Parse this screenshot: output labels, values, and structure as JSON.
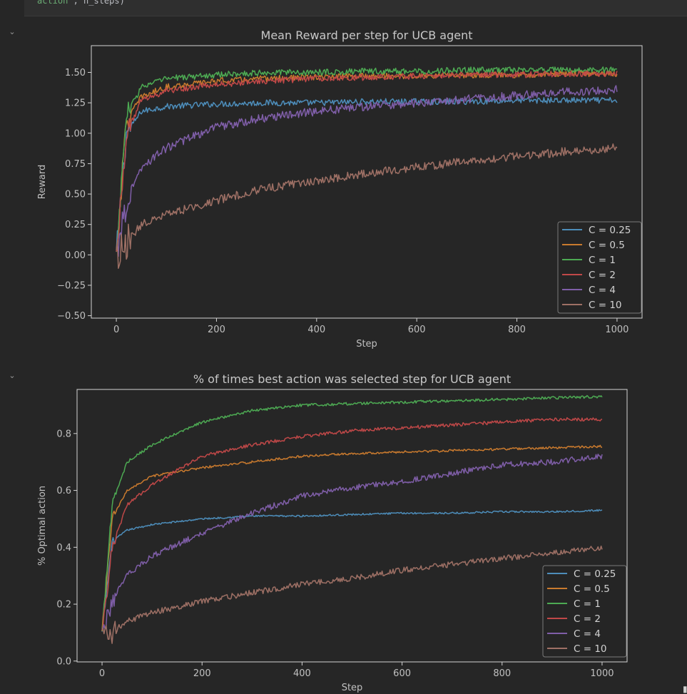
{
  "code_cell": {
    "string_fragment": "action\"",
    "rest_fragment": ", n_steps)"
  },
  "cell_toggle_icon": "chevron-down-icon",
  "cell_toggle_glyph": "⌄",
  "colors": {
    "background": "#262626",
    "axes_background": "#262626",
    "axes_frame": "#d4d4d4",
    "legend_background": "#262626",
    "legend_border": "#7a7a7a",
    "series": [
      "#4d8dba",
      "#c97a2e",
      "#4daa53",
      "#c04848",
      "#7f5ea8",
      "#9e7065"
    ]
  },
  "chart_data": [
    {
      "type": "line",
      "title": "Mean Reward per step for UCB agent",
      "xlabel": "Step",
      "ylabel": "Reward",
      "xlim": [
        -50,
        1050
      ],
      "ylim": [
        -0.52,
        1.72
      ],
      "xticks": [
        0,
        200,
        400,
        600,
        800,
        1000
      ],
      "yticks": [
        -0.5,
        -0.25,
        0.0,
        0.25,
        0.5,
        0.75,
        1.0,
        1.25,
        1.5
      ],
      "ytick_labels": [
        "−0.50",
        "−0.25",
        "0.00",
        "0.25",
        "0.50",
        "0.75",
        "1.00",
        "1.25",
        "1.50"
      ],
      "grid": false,
      "legend_position": "lower right",
      "x": [
        0,
        20,
        50,
        100,
        200,
        300,
        400,
        500,
        600,
        700,
        800,
        900,
        1000
      ],
      "series": [
        {
          "name": "C = 0.25",
          "values": [
            0.0,
            1.0,
            1.18,
            1.22,
            1.24,
            1.25,
            1.25,
            1.26,
            1.26,
            1.26,
            1.27,
            1.27,
            1.27
          ],
          "noise": 0.025
        },
        {
          "name": "C = 0.5",
          "values": [
            0.0,
            1.1,
            1.3,
            1.38,
            1.43,
            1.45,
            1.46,
            1.47,
            1.47,
            1.48,
            1.48,
            1.49,
            1.49
          ],
          "noise": 0.025
        },
        {
          "name": "C = 1",
          "values": [
            0.0,
            1.15,
            1.38,
            1.45,
            1.48,
            1.5,
            1.5,
            1.51,
            1.51,
            1.52,
            1.52,
            1.52,
            1.52
          ],
          "noise": 0.025
        },
        {
          "name": "C = 2",
          "values": [
            0.0,
            1.0,
            1.27,
            1.35,
            1.4,
            1.43,
            1.45,
            1.46,
            1.47,
            1.48,
            1.48,
            1.49,
            1.49
          ],
          "noise": 0.025
        },
        {
          "name": "C = 4",
          "values": [
            0.0,
            0.45,
            0.72,
            0.88,
            1.05,
            1.13,
            1.18,
            1.22,
            1.25,
            1.28,
            1.31,
            1.34,
            1.36
          ],
          "noise": 0.035
        },
        {
          "name": "C = 10",
          "values": [
            0.0,
            0.1,
            0.25,
            0.33,
            0.45,
            0.55,
            0.61,
            0.67,
            0.72,
            0.77,
            0.81,
            0.85,
            0.88
          ],
          "noise": 0.035
        }
      ]
    },
    {
      "type": "line",
      "title": "% of times best action was selected step for UCB agent",
      "xlabel": "Step",
      "ylabel": "% Optimal action",
      "xlim": [
        -50,
        1050
      ],
      "ylim": [
        -0.003,
        0.955
      ],
      "xticks": [
        0,
        200,
        400,
        600,
        800,
        1000
      ],
      "yticks": [
        0.0,
        0.2,
        0.4,
        0.6,
        0.8
      ],
      "ytick_labels": [
        "0.0",
        "0.2",
        "0.4",
        "0.6",
        "0.8"
      ],
      "grid": false,
      "legend_position": "lower right",
      "x": [
        0,
        20,
        50,
        100,
        200,
        300,
        400,
        500,
        600,
        700,
        800,
        900,
        1000
      ],
      "series": [
        {
          "name": "C = 0.25",
          "values": [
            0.1,
            0.42,
            0.46,
            0.48,
            0.5,
            0.51,
            0.51,
            0.515,
            0.52,
            0.52,
            0.525,
            0.525,
            0.53
          ],
          "noise": 0.003
        },
        {
          "name": "C = 0.5",
          "values": [
            0.1,
            0.5,
            0.6,
            0.65,
            0.68,
            0.7,
            0.72,
            0.73,
            0.735,
            0.74,
            0.745,
            0.75,
            0.755
          ],
          "noise": 0.004
        },
        {
          "name": "C = 1",
          "values": [
            0.1,
            0.55,
            0.7,
            0.76,
            0.84,
            0.88,
            0.9,
            0.905,
            0.91,
            0.915,
            0.92,
            0.925,
            0.93
          ],
          "noise": 0.005
        },
        {
          "name": "C = 2",
          "values": [
            0.1,
            0.4,
            0.55,
            0.62,
            0.72,
            0.76,
            0.79,
            0.81,
            0.82,
            0.83,
            0.84,
            0.85,
            0.85
          ],
          "noise": 0.006
        },
        {
          "name": "C = 4",
          "values": [
            0.1,
            0.22,
            0.3,
            0.37,
            0.45,
            0.52,
            0.58,
            0.61,
            0.63,
            0.66,
            0.69,
            0.7,
            0.72
          ],
          "noise": 0.01
        },
        {
          "name": "C = 10",
          "values": [
            0.1,
            0.1,
            0.14,
            0.17,
            0.21,
            0.24,
            0.27,
            0.29,
            0.32,
            0.34,
            0.36,
            0.38,
            0.4
          ],
          "noise": 0.01
        }
      ]
    }
  ]
}
